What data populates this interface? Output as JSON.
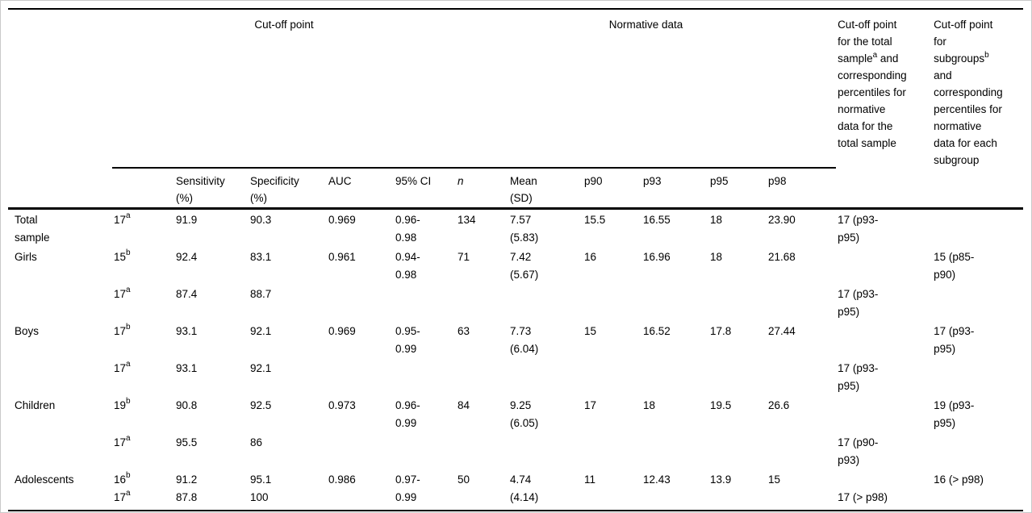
{
  "page": {
    "background_color": "#ffffff",
    "frame_border_color": "#c9c9c9",
    "text_color": "#000000",
    "rule_color": "#000000"
  },
  "table": {
    "spanners": [
      {
        "label": "Cut-off point"
      },
      {
        "label": "Normative data"
      }
    ],
    "corner_label": "",
    "tall_headers": [
      {
        "label": "Cut-off point\nfor the total\nsample^a and\ncorresponding\npercentiles for\nnormative\ndata for the\ntotal sample"
      },
      {
        "label": "Cut-off point\nfor\nsubgroups^b\nand\ncorresponding\npercentiles for\nnormative\ndata for each\nsubgroup"
      }
    ],
    "sub_headers": [
      "",
      "Sensitivity\n(%)",
      "Specificity\n(%)",
      "AUC",
      "95% CI",
      "n",
      "Mean\n(SD)",
      "p90",
      "p93",
      "p95",
      "p98"
    ],
    "rows": [
      {
        "group": "total-sample",
        "cells": [
          "Total\nsample",
          "17^a",
          "91.9",
          "90.3",
          "0.969",
          "0.96-\n0.98",
          "134",
          "7.57\n(5.83)",
          "15.5",
          "16.55",
          "18",
          "23.90",
          "17 (p93-\np95)",
          ""
        ]
      },
      {
        "group": "girls",
        "cells": [
          "Girls",
          "15^b",
          "92.4",
          "83.1",
          "0.961",
          "0.94-\n0.98",
          "71",
          "7.42\n(5.67)",
          "16",
          "16.96",
          "18",
          "21.68",
          "",
          "15 (p85-\np90)"
        ]
      },
      {
        "group": "girls",
        "cells": [
          "",
          "17^a",
          "87.4",
          "88.7",
          "",
          "",
          "",
          "",
          "",
          "",
          "",
          "",
          "17 (p93-\np95)",
          ""
        ]
      },
      {
        "group": "boys",
        "cells": [
          "Boys",
          "17^b",
          "93.1",
          "92.1",
          "0.969",
          "0.95-\n0.99",
          "63",
          "7.73\n(6.04)",
          "15",
          "16.52",
          "17.8",
          "27.44",
          "",
          "17 (p93-\np95)"
        ]
      },
      {
        "group": "boys",
        "cells": [
          "",
          "17^a",
          "93.1",
          "92.1",
          "",
          "",
          "",
          "",
          "",
          "",
          "",
          "",
          "17 (p93-\np95)",
          ""
        ]
      },
      {
        "group": "children",
        "cells": [
          "Children",
          "19^b",
          "90.8",
          "92.5",
          "0.973",
          "0.96-\n0.99",
          "84",
          "9.25\n(6.05)",
          "17",
          "18",
          "19.5",
          "26.6",
          "",
          "19 (p93-\np95)"
        ]
      },
      {
        "group": "children",
        "cells": [
          "",
          "17^a",
          "95.5",
          "86",
          "",
          "",
          "",
          "",
          "",
          "",
          "",
          "",
          "17 (p90-\np93)",
          ""
        ]
      },
      {
        "group": "adolescents",
        "cells": [
          "Adolescents",
          "16^b\n17^a",
          "91.2\n87.8",
          "95.1\n100",
          "0.986",
          "0.97-\n0.99",
          "50",
          "4.74\n(4.14)",
          "11",
          "12.43",
          "13.9",
          "15",
          "\n17 (> p98)",
          "16 (> p98)"
        ]
      }
    ]
  }
}
